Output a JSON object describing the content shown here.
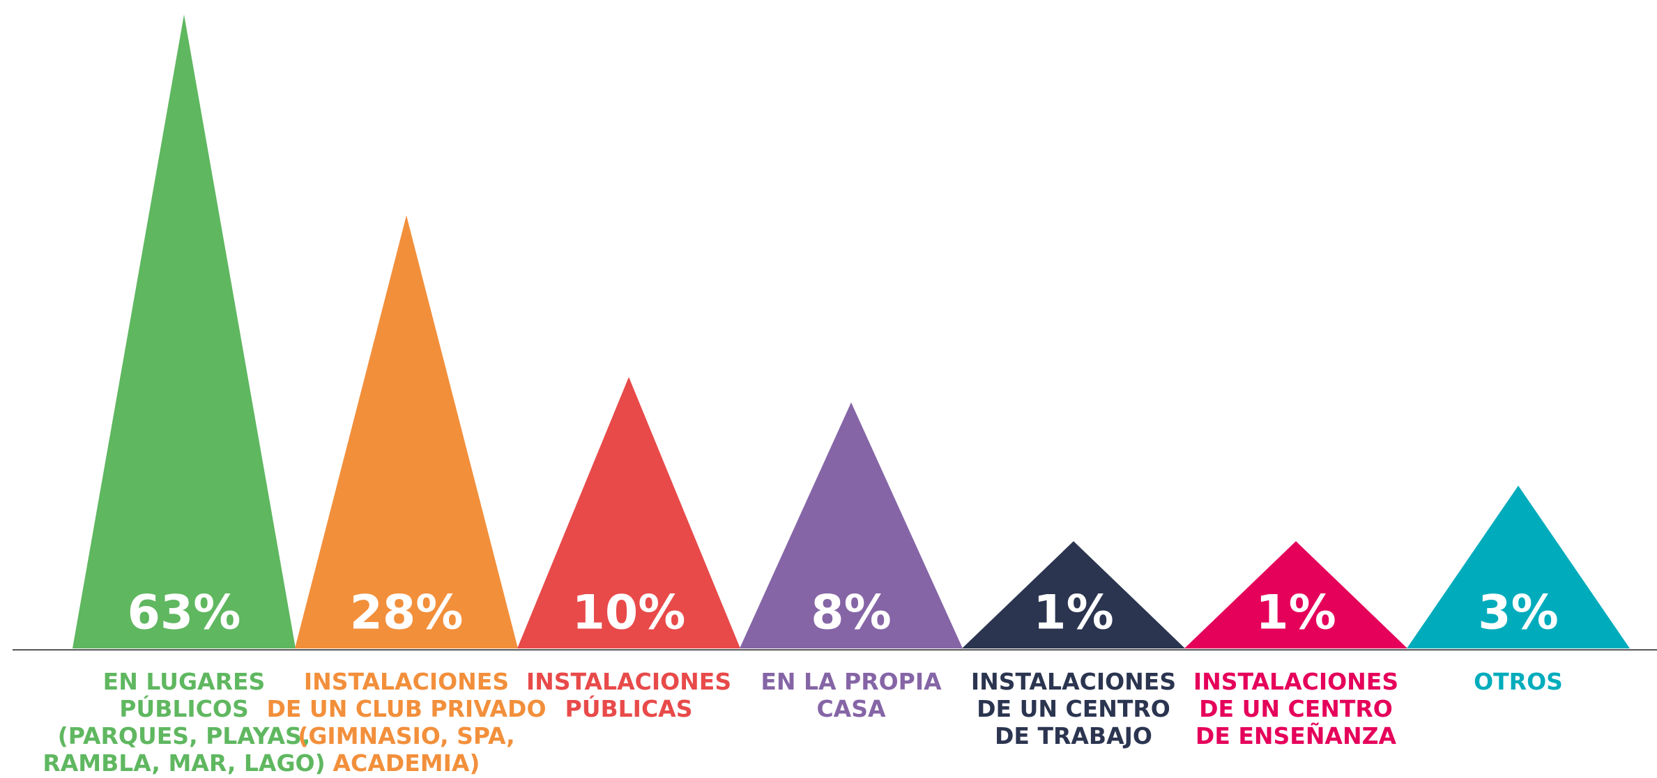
{
  "chart_data": {
    "type": "triangle",
    "categories": [
      [
        "EN LUGARES",
        "PÚBLICOS",
        "(PARQUES, PLAYAS,",
        "RAMBLA, MAR, LAGO)"
      ],
      [
        "INSTALACIONES",
        "DE UN CLUB PRIVADO",
        "(GIMNASIO, SPA,",
        "ACADEMIA)"
      ],
      [
        "INSTALACIONES",
        "PÚBLICAS"
      ],
      [
        "EN LA PROPIA",
        "CASA"
      ],
      [
        "INSTALACIONES",
        "DE UN CENTRO",
        "DE TRABAJO"
      ],
      [
        "INSTALACIONES",
        "DE UN CENTRO",
        "DE ENSEÑANZA"
      ],
      [
        "OTROS"
      ]
    ],
    "values": [
      63,
      28,
      10,
      8,
      1,
      1,
      3
    ],
    "value_labels": [
      "63%",
      "28%",
      "10%",
      "8%",
      "1%",
      "1%",
      "3%"
    ],
    "colors": [
      "#5fb760",
      "#f28f3b",
      "#e84a4a",
      "#8565a6",
      "#2b3550",
      "#e5005a",
      "#00acbc"
    ]
  }
}
